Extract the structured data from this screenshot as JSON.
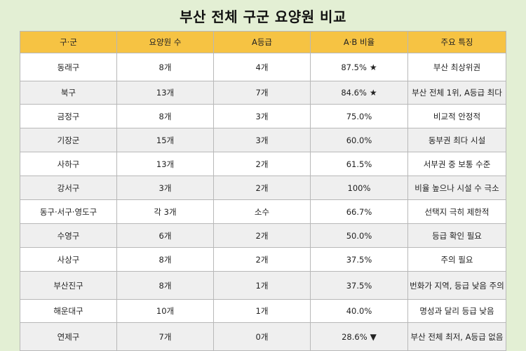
{
  "title": "부산 전체 구군 요양원 비교",
  "headers": [
    "구·군",
    "요양원 수",
    "A등급",
    "A·B 비율",
    "주요 특징"
  ],
  "rows": [
    {
      "district": "동래구",
      "count": "8개",
      "a_grade": "4개",
      "ab_ratio": "87.5%",
      "mark": "★",
      "feature": "부산 최상위권"
    },
    {
      "district": "북구",
      "count": "13개",
      "a_grade": "7개",
      "ab_ratio": "84.6%",
      "mark": "★",
      "feature": "부산 전체 1위, A등급 최다"
    },
    {
      "district": "금정구",
      "count": "8개",
      "a_grade": "3개",
      "ab_ratio": "75.0%",
      "mark": "",
      "feature": "비교적 안정적"
    },
    {
      "district": "기장군",
      "count": "15개",
      "a_grade": "3개",
      "ab_ratio": "60.0%",
      "mark": "",
      "feature": "동부권 최다 시설"
    },
    {
      "district": "사하구",
      "count": "13개",
      "a_grade": "2개",
      "ab_ratio": "61.5%",
      "mark": "",
      "feature": "서부권 중 보통 수준"
    },
    {
      "district": "강서구",
      "count": "3개",
      "a_grade": "2개",
      "ab_ratio": "100%",
      "mark": "",
      "feature": "비율 높으나 시설 수 극소"
    },
    {
      "district": "동구·서구·영도구",
      "count": "각 3개",
      "a_grade": "소수",
      "ab_ratio": "66.7%",
      "mark": "",
      "feature": "선택지 극히 제한적"
    },
    {
      "district": "수영구",
      "count": "6개",
      "a_grade": "2개",
      "ab_ratio": "50.0%",
      "mark": "",
      "feature": "등급 확인 필요"
    },
    {
      "district": "사상구",
      "count": "8개",
      "a_grade": "2개",
      "ab_ratio": "37.5%",
      "mark": "",
      "feature": "주의 필요"
    },
    {
      "district": "부산진구",
      "count": "8개",
      "a_grade": "1개",
      "ab_ratio": "37.5%",
      "mark": "",
      "feature": "번화가 지역, 등급 낮음 주의"
    },
    {
      "district": "해운대구",
      "count": "10개",
      "a_grade": "1개",
      "ab_ratio": "40.0%",
      "mark": "",
      "feature": "명성과 달리 등급 낮음"
    },
    {
      "district": "연제구",
      "count": "7개",
      "a_grade": "0개",
      "ab_ratio": "28.6%",
      "mark": "▼",
      "feature": "부산 전체 최저, A등급 없음"
    }
  ]
}
